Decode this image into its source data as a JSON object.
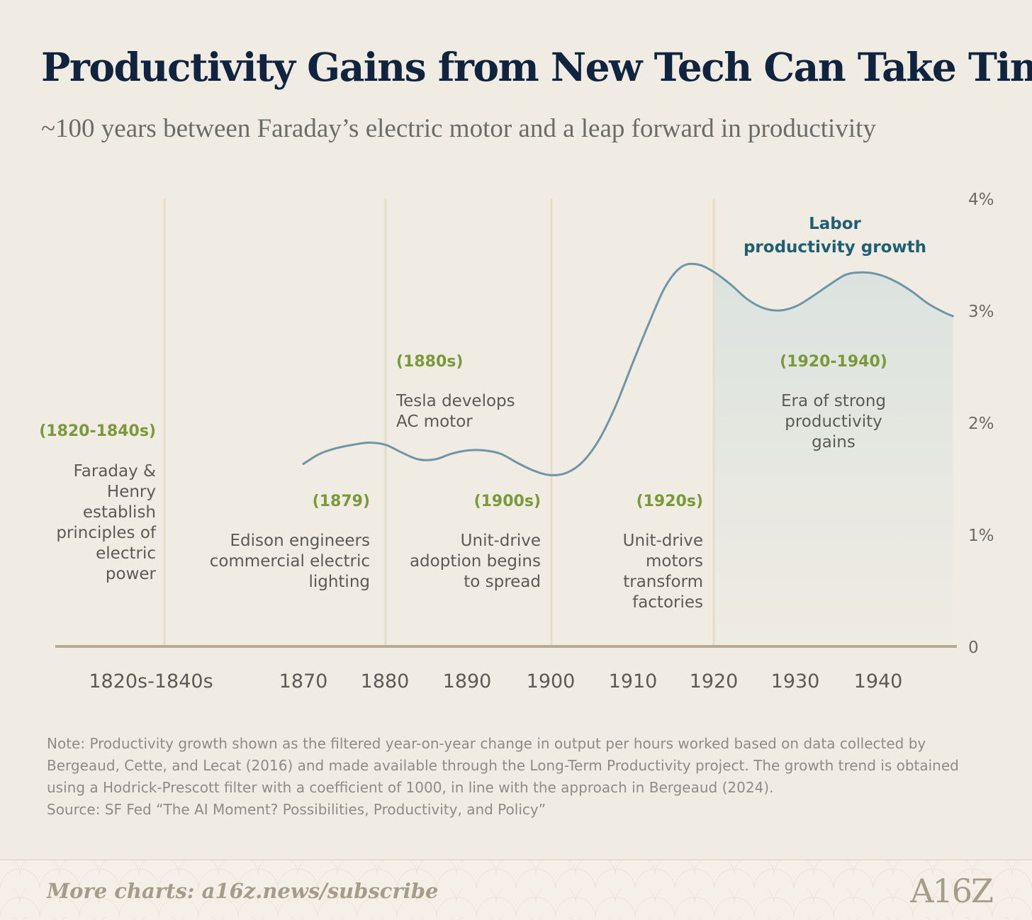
{
  "title": "Productivity Gains from New Tech Can Take Time",
  "subtitle": "~100 years between Faraday’s electric motor and a leap forward in productivity",
  "colors": {
    "line": "#6d97a7",
    "area_fill": "#dce3df",
    "year_label": "#7a9a3a",
    "series_label": "#1f5f73",
    "title": "#10233f",
    "axis": "#b5a996",
    "divider": "#e6dcc6"
  },
  "chart_data": {
    "type": "line",
    "title": "Productivity Gains from New Tech Can Take Time",
    "subtitle": "~100 years between Faraday’s electric motor and a leap forward in productivity",
    "x_tick_labels": [
      "1820s-1840s",
      "1870",
      "1880",
      "1890",
      "1900",
      "1910",
      "1920",
      "1930",
      "1940"
    ],
    "y_tick_labels": [
      "0",
      "1%",
      "2%",
      "3%",
      "4%"
    ],
    "ylim": [
      0,
      4
    ],
    "xlim": [
      1870,
      1949
    ],
    "grid": false,
    "series": [
      {
        "name": "Labor productivity growth",
        "x": [
          1870,
          1872,
          1874,
          1876,
          1878,
          1880,
          1882,
          1884,
          1886,
          1888,
          1890,
          1892,
          1894,
          1896,
          1898,
          1900,
          1902,
          1904,
          1906,
          1908,
          1910,
          1912,
          1914,
          1916,
          1918,
          1920,
          1922,
          1924,
          1926,
          1928,
          1930,
          1932,
          1934,
          1936,
          1938,
          1940,
          1942,
          1944,
          1946,
          1948,
          1949
        ],
        "y": [
          1.63,
          1.72,
          1.77,
          1.8,
          1.82,
          1.8,
          1.73,
          1.67,
          1.67,
          1.72,
          1.75,
          1.75,
          1.72,
          1.64,
          1.57,
          1.53,
          1.55,
          1.65,
          1.85,
          2.15,
          2.52,
          2.88,
          3.21,
          3.39,
          3.41,
          3.34,
          3.23,
          3.1,
          3.02,
          3.0,
          3.04,
          3.13,
          3.23,
          3.32,
          3.34,
          3.32,
          3.26,
          3.17,
          3.06,
          2.98,
          2.95
        ]
      }
    ],
    "shaded_region": {
      "x_start": 1920,
      "x_end": 1949
    },
    "series_label": "Labor\nproductivity growth",
    "annotations": [
      {
        "year": "(1820-1840s)",
        "text": "Faraday &\nHenry\nestablish\nprinciples of\nelectric\npower"
      },
      {
        "year": "(1879)",
        "text": "Edison engineers\ncommercial electric\nlighting"
      },
      {
        "year": "(1880s)",
        "text": "Tesla develops\nAC motor"
      },
      {
        "year": "(1900s)",
        "text": "Unit-drive\nadoption begins\nto spread"
      },
      {
        "year": "(1920s)",
        "text": "Unit-drive\nmotors\ntransform\nfactories"
      },
      {
        "year": "(1920-1940)",
        "text": "Era of strong\nproductivity\ngains"
      }
    ]
  },
  "notes": {
    "note": "Note: Productivity growth shown as the filtered year-on-year change in output per hours worked based on data collected by Bergeaud, Cette, and Lecat (2016) and made available through the Long-Term Productivity project. The growth trend is obtained using a Hodrick-Prescott filter with a coefficient of 1000, in line with the approach in Bergeaud (2024).",
    "source": "Source: SF Fed “The AI Moment? Possibilities, Productivity, and Policy”"
  },
  "footer": {
    "cta": "More charts: a16z.news/subscribe",
    "logo": "A16Z"
  }
}
